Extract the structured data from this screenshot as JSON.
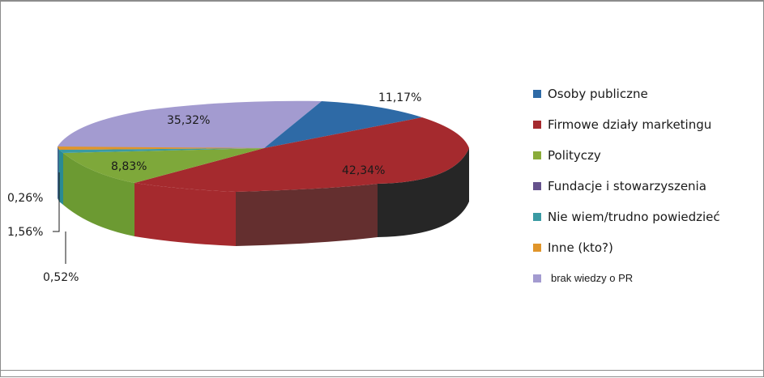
{
  "chart_data": {
    "type": "pie",
    "style": "3d",
    "legend_position": "right",
    "slices": [
      {
        "label": "Osoby publiczne",
        "value": 11.17,
        "display": "11,17%",
        "color": "#2e6aa6"
      },
      {
        "label": "Firmowe działy marketingu",
        "value": 42.34,
        "display": "42,34%",
        "color": "#a52a2e"
      },
      {
        "label": "Polityczy",
        "value": 0,
        "display": "",
        "color": "#000000"
      },
      {
        "label": "Fundacje i stowarzyszenia",
        "value": 0.26,
        "display": "0,26%",
        "color": "#65528c"
      },
      {
        "label": "Nie wiem/trudno powiedzieć",
        "value": 1.56,
        "display": "1,56%",
        "color": "#3a9aa3"
      },
      {
        "label": "Inne (kto?)",
        "value": 0.52,
        "display": "0,52%",
        "color": "#e0952a"
      },
      {
        "label": "brak wiedzy o PR",
        "value": 35.32,
        "display": "35,32%",
        "color": "#a39bd0"
      }
    ]
  }
}
